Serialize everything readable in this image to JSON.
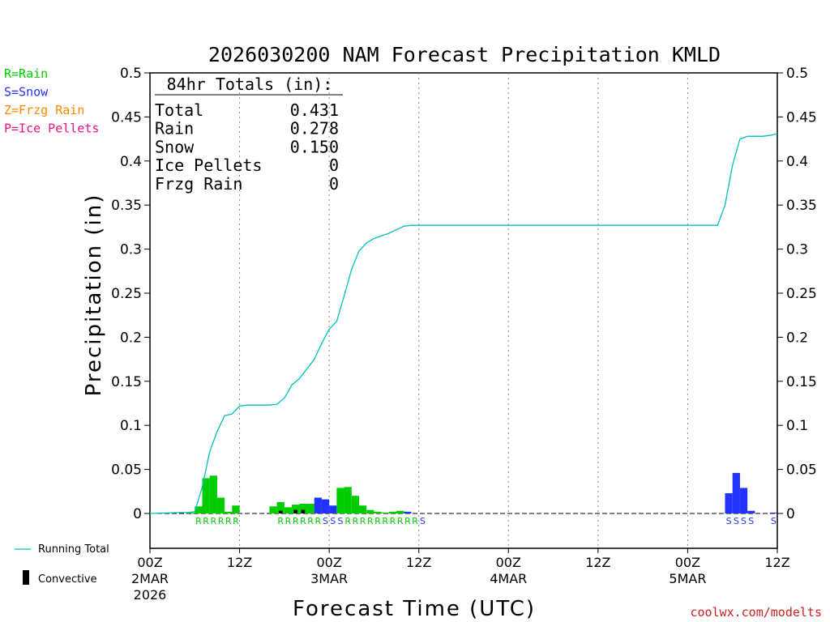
{
  "chart_data": {
    "type": "bar",
    "title": "2026030200 NAM Forecast Precipitation KMLD",
    "xlabel": "Forecast Time (UTC)",
    "ylabel": "Precipitation (in)",
    "ylim": [
      -0.04,
      0.5
    ],
    "y_ticks": [
      "0.5",
      "0.45",
      "0.4",
      "0.35",
      "0.3",
      "0.25",
      "0.2",
      "0.15",
      "0.1",
      "0.05",
      "0"
    ],
    "y_tick_values": [
      0.5,
      0.45,
      0.4,
      0.35,
      0.3,
      0.25,
      0.2,
      0.15,
      0.1,
      0.05,
      0
    ],
    "x_range_hours": [
      0,
      84
    ],
    "x_ticks": [
      {
        "hour": 0,
        "line1": "00Z",
        "line2": "2MAR",
        "line3": "2026"
      },
      {
        "hour": 12,
        "line1": "12Z",
        "line2": "",
        "line3": ""
      },
      {
        "hour": 24,
        "line1": "00Z",
        "line2": "3MAR",
        "line3": ""
      },
      {
        "hour": 36,
        "line1": "12Z",
        "line2": "",
        "line3": ""
      },
      {
        "hour": 48,
        "line1": "00Z",
        "line2": "4MAR",
        "line3": ""
      },
      {
        "hour": 60,
        "line1": "12Z",
        "line2": "",
        "line3": ""
      },
      {
        "hour": 72,
        "line1": "00Z",
        "line2": "5MAR",
        "line3": ""
      },
      {
        "hour": 84,
        "line1": "12Z",
        "line2": "",
        "line3": ""
      }
    ],
    "type_legend": [
      {
        "text": "R=Rain",
        "color": "#00cc00"
      },
      {
        "text": "S=Snow",
        "color": "#2233ff"
      },
      {
        "text": "Z=Frzg Rain",
        "color": "#ff8800"
      },
      {
        "text": "P=Ice Pellets",
        "color": "#ee1188"
      }
    ],
    "series_legend": {
      "running_total": "Running Total",
      "convective": "Convective"
    },
    "colors": {
      "rain": "#00cc00",
      "snow": "#2233ff",
      "running_total": "#00c0c0",
      "convective": "#000000",
      "grid": "#888888"
    },
    "totals": {
      "header": "84hr Totals (in):",
      "rows": [
        {
          "label": "Total",
          "value": "0.431"
        },
        {
          "label": "Rain",
          "value": "0.278"
        },
        {
          "label": "Snow",
          "value": "0.150"
        },
        {
          "label": "Ice Pellets",
          "value": "0"
        },
        {
          "label": "Frzg Rain",
          "value": "0"
        }
      ]
    },
    "bars": [
      {
        "hour": 5.5,
        "type": "R",
        "value": 0.001
      },
      {
        "hour": 6.5,
        "type": "R",
        "value": 0.008
      },
      {
        "hour": 7.5,
        "type": "R",
        "value": 0.04
      },
      {
        "hour": 8.5,
        "type": "R",
        "value": 0.043
      },
      {
        "hour": 9.5,
        "type": "R",
        "value": 0.018
      },
      {
        "hour": 10.5,
        "type": "R",
        "value": 0.002
      },
      {
        "hour": 11.5,
        "type": "R",
        "value": 0.009
      },
      {
        "hour": 16.5,
        "type": "R",
        "value": 0.008
      },
      {
        "hour": 17.5,
        "type": "R",
        "value": 0.013
      },
      {
        "hour": 18.5,
        "type": "R",
        "value": 0.007
      },
      {
        "hour": 19.5,
        "type": "R",
        "value": 0.01
      },
      {
        "hour": 20.5,
        "type": "R",
        "value": 0.011
      },
      {
        "hour": 21.5,
        "type": "R",
        "value": 0.011
      },
      {
        "hour": 22.5,
        "type": "S",
        "value": 0.018
      },
      {
        "hour": 23.5,
        "type": "S",
        "value": 0.016
      },
      {
        "hour": 24.5,
        "type": "S",
        "value": 0.009
      },
      {
        "hour": 25.5,
        "type": "R",
        "value": 0.029
      },
      {
        "hour": 26.5,
        "type": "R",
        "value": 0.03
      },
      {
        "hour": 27.5,
        "type": "R",
        "value": 0.02
      },
      {
        "hour": 28.5,
        "type": "R",
        "value": 0.009
      },
      {
        "hour": 29.5,
        "type": "R",
        "value": 0.004
      },
      {
        "hour": 30.5,
        "type": "R",
        "value": 0.002
      },
      {
        "hour": 31.5,
        "type": "R",
        "value": 0.001
      },
      {
        "hour": 32.5,
        "type": "R",
        "value": 0.002
      },
      {
        "hour": 33.5,
        "type": "R",
        "value": 0.003
      },
      {
        "hour": 34.5,
        "type": "S",
        "value": 0.002
      },
      {
        "hour": 77.5,
        "type": "S",
        "value": 0.023
      },
      {
        "hour": 78.5,
        "type": "S",
        "value": 0.046
      },
      {
        "hour": 79.5,
        "type": "S",
        "value": 0.029
      },
      {
        "hour": 80.5,
        "type": "S",
        "value": 0.003
      },
      {
        "hour": 83.5,
        "type": "S",
        "value": 0.001
      }
    ],
    "convective": [
      {
        "hour": 17.5,
        "value": 0.003
      },
      {
        "hour": 19.5,
        "value": 0.004
      },
      {
        "hour": 20.5,
        "value": 0.004
      }
    ],
    "running_total": [
      [
        0,
        0
      ],
      [
        4,
        0.001
      ],
      [
        5,
        0.001
      ],
      [
        6,
        0.002
      ],
      [
        7,
        0.03
      ],
      [
        8,
        0.07
      ],
      [
        9,
        0.093
      ],
      [
        10,
        0.111
      ],
      [
        11,
        0.113
      ],
      [
        12,
        0.122
      ],
      [
        13,
        0.123
      ],
      [
        15,
        0.123
      ],
      [
        16,
        0.123
      ],
      [
        17,
        0.124
      ],
      [
        18,
        0.131
      ],
      [
        19,
        0.146
      ],
      [
        20,
        0.153
      ],
      [
        21,
        0.164
      ],
      [
        22,
        0.175
      ],
      [
        23,
        0.193
      ],
      [
        24,
        0.209
      ],
      [
        25,
        0.218
      ],
      [
        26,
        0.247
      ],
      [
        27,
        0.277
      ],
      [
        28,
        0.298
      ],
      [
        29,
        0.307
      ],
      [
        30,
        0.312
      ],
      [
        31,
        0.315
      ],
      [
        32,
        0.318
      ],
      [
        33,
        0.322
      ],
      [
        34,
        0.326
      ],
      [
        35,
        0.327
      ],
      [
        48,
        0.327
      ],
      [
        60,
        0.327
      ],
      [
        72,
        0.327
      ],
      [
        76,
        0.327
      ],
      [
        77,
        0.35
      ],
      [
        78,
        0.395
      ],
      [
        79,
        0.425
      ],
      [
        80,
        0.428
      ],
      [
        82,
        0.428
      ],
      [
        83,
        0.429
      ],
      [
        84,
        0.431
      ]
    ],
    "type_label_groups": [
      {
        "start_hour": 6,
        "text": "RRRRRR"
      },
      {
        "start_hour": 17,
        "text": "RRRRRRSSSRRRRRRRRRRS"
      },
      {
        "start_hour": 77,
        "text": "SSSS"
      },
      {
        "start_hour": 83,
        "text": "S"
      }
    ],
    "credit": "coolwx.com/modelts"
  }
}
